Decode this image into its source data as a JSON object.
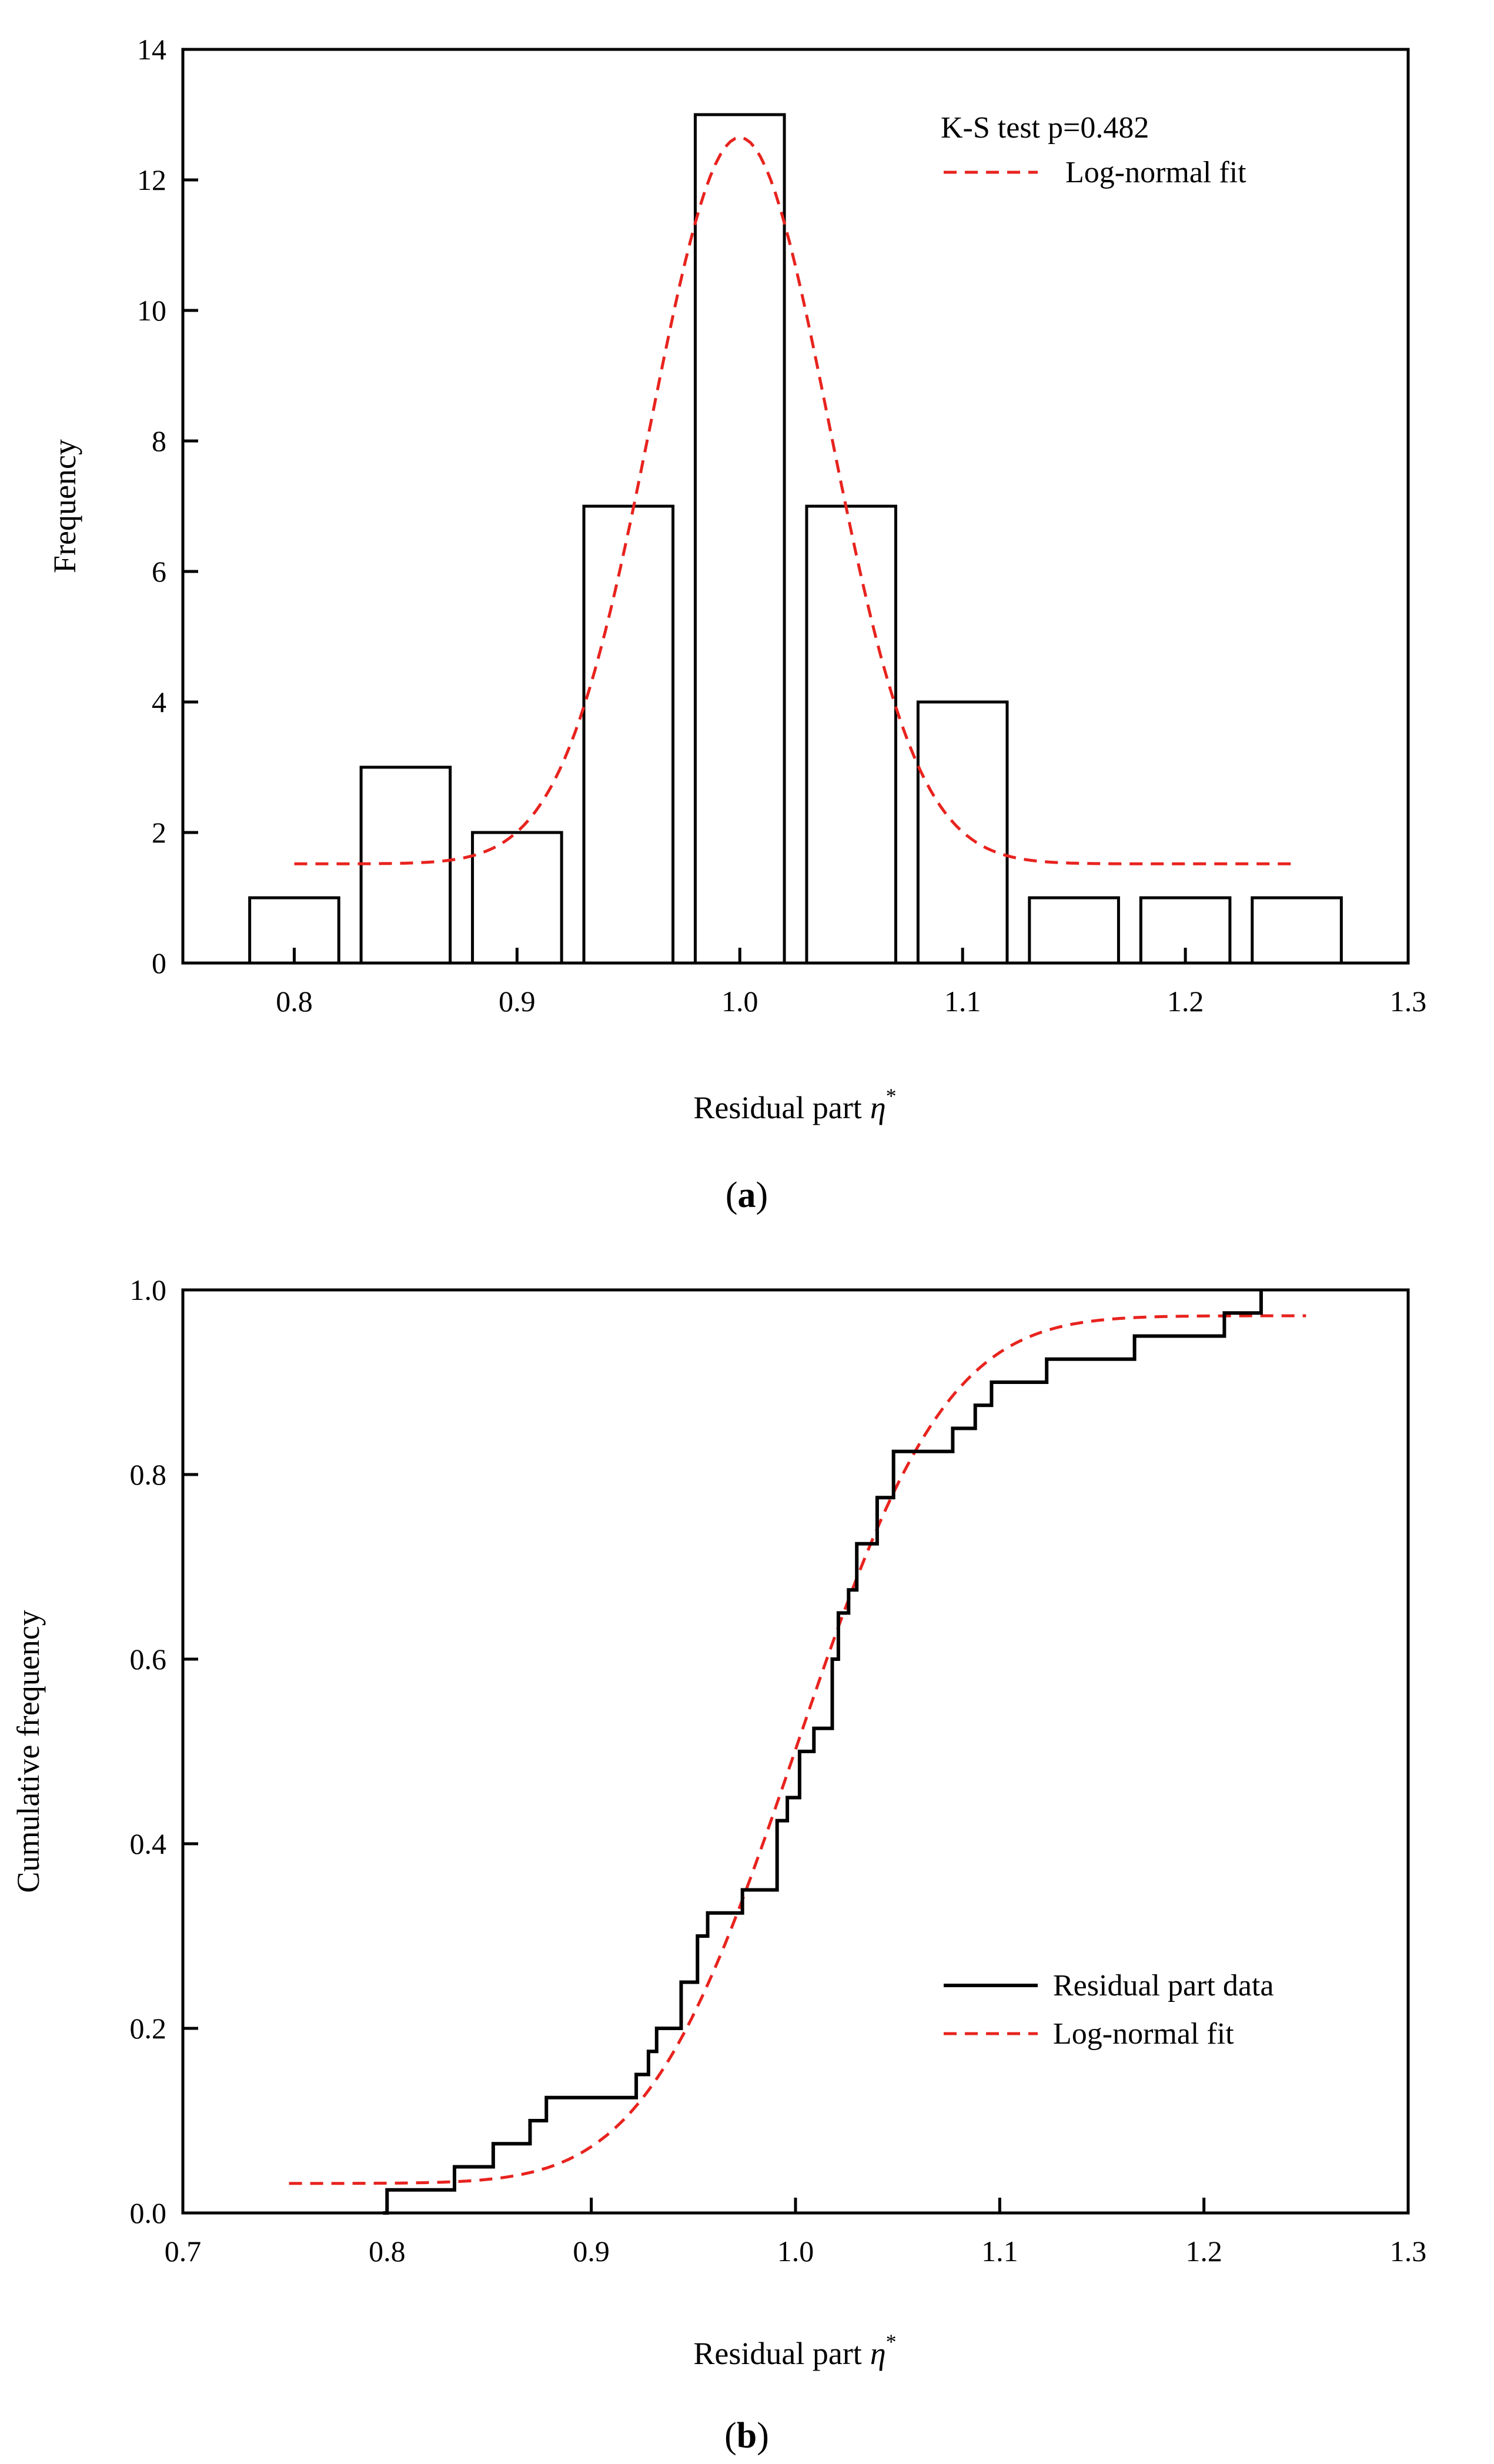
{
  "chart_data": [
    {
      "type": "bar",
      "panel_label": "a",
      "title": "",
      "xlabel": "Residual part",
      "xlabel_symbol": "η",
      "xlabel_superscript": "*",
      "ylabel": "Frequency",
      "xlim": [
        0.75,
        1.3
      ],
      "ylim": [
        0,
        14
      ],
      "xticks": [
        "0.8",
        "0.9",
        "1.0",
        "1.1",
        "1.2",
        "1.3"
      ],
      "yticks": [
        "0",
        "2",
        "4",
        "6",
        "8",
        "10",
        "12",
        "14"
      ],
      "bin_width": 0.04,
      "bin_centers": [
        0.8,
        0.85,
        0.9,
        0.95,
        1.0,
        1.05,
        1.1,
        1.15,
        1.2,
        1.25
      ],
      "values": [
        1,
        3,
        2,
        7,
        13,
        7,
        4,
        1,
        1,
        1
      ],
      "annotation": "K-S test p=0.482",
      "legend": [
        "Log-normal fit"
      ],
      "legend_position": "top-right",
      "fit": {
        "name": "Log-normal fit",
        "x_range": [
          0.8,
          1.25
        ],
        "peak_x": 1.0,
        "peak_y": 12.65,
        "baseline_y": 1.52,
        "sigma": 0.04
      }
    },
    {
      "type": "line",
      "panel_label": "b",
      "title": "",
      "xlabel": "Residual part",
      "xlabel_symbol": "η",
      "xlabel_superscript": "*",
      "ylabel": "Cumulative frequency",
      "xlim": [
        0.7,
        1.3
      ],
      "ylim": [
        0,
        1.0
      ],
      "xticks": [
        "0.7",
        "0.8",
        "0.9",
        "1.0",
        "1.1",
        "1.2",
        "1.3"
      ],
      "yticks": [
        "0.0",
        "0.2",
        "0.4",
        "0.6",
        "0.8",
        "1.0"
      ],
      "legend_position": "center-right",
      "series": [
        {
          "name": "Residual part data",
          "style": "step",
          "x": [
            0.798,
            0.8,
            0.833,
            0.852,
            0.87,
            0.875,
            0.878,
            0.918,
            0.922,
            0.928,
            0.932,
            0.937,
            0.944,
            0.95,
            0.952,
            0.957,
            0.974,
            0.991,
            0.996,
            1.002,
            1.005,
            1.009,
            1.018,
            1.021,
            1.026,
            1.03,
            1.04,
            1.045,
            1.048,
            1.077,
            1.088,
            1.094,
            1.096,
            1.1,
            1.123,
            1.166,
            1.21,
            1.228
          ],
          "y": [
            0.0,
            0.025,
            0.05,
            0.075,
            0.1,
            0.1,
            0.125,
            0.125,
            0.15,
            0.175,
            0.2,
            0.2,
            0.25,
            0.25,
            0.3,
            0.325,
            0.35,
            0.425,
            0.45,
            0.5,
            0.5,
            0.525,
            0.6,
            0.65,
            0.675,
            0.725,
            0.775,
            0.775,
            0.825,
            0.85,
            0.875,
            0.875,
            0.9,
            0.9,
            0.925,
            0.95,
            0.975,
            1.0
          ]
        },
        {
          "name": "Log-normal fit",
          "style": "dashed",
          "x_range": [
            0.752,
            1.25
          ],
          "baseline_y": 0.032,
          "top_y": 0.972,
          "center_x": 1.0,
          "sigma": 0.058
        }
      ]
    }
  ],
  "colors": {
    "axis": "#000000",
    "fit_line": "#e8231e",
    "bar_fill": "#ffffff",
    "background": "#ffffff"
  }
}
